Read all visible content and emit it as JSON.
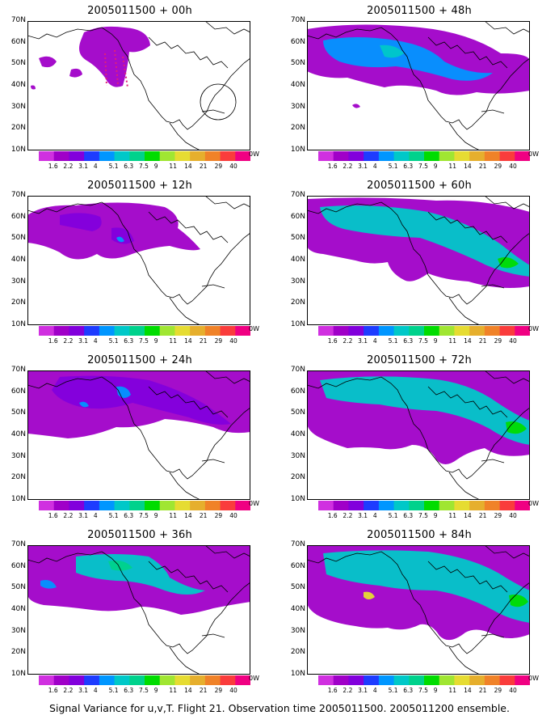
{
  "panels": [
    {
      "title": "2005011500 + 00h"
    },
    {
      "title": "2005011500 + 48h"
    },
    {
      "title": "2005011500 + 12h"
    },
    {
      "title": "2005011500 + 60h"
    },
    {
      "title": "2005011500 + 24h"
    },
    {
      "title": "2005011500 + 72h"
    },
    {
      "title": "2005011500 + 36h"
    },
    {
      "title": "2005011500 + 84h"
    }
  ],
  "lat_labels": [
    "70N",
    "60N",
    "50N",
    "40N",
    "30N",
    "20N",
    "10N"
  ],
  "lon_end_label": "0W",
  "colorbar": {
    "labels": [
      "1.6",
      "2.2",
      "3.1",
      "4",
      "5.1",
      "6.3",
      "7.5",
      "9",
      "11",
      "14",
      "21",
      "29",
      "40"
    ],
    "colors": [
      "#a000c8",
      "#8200dc",
      "#1e3cff",
      "#0096ff",
      "#00c8c8",
      "#00d28c",
      "#00dc00",
      "#a0e632",
      "#e6dc32",
      "#e6af2d",
      "#f08228",
      "#fa3c3c",
      "#f00082"
    ]
  },
  "footer": "Signal Variance for u,v,T. Flight 21. Observation time 2005011500. 2005011200 ensemble."
}
